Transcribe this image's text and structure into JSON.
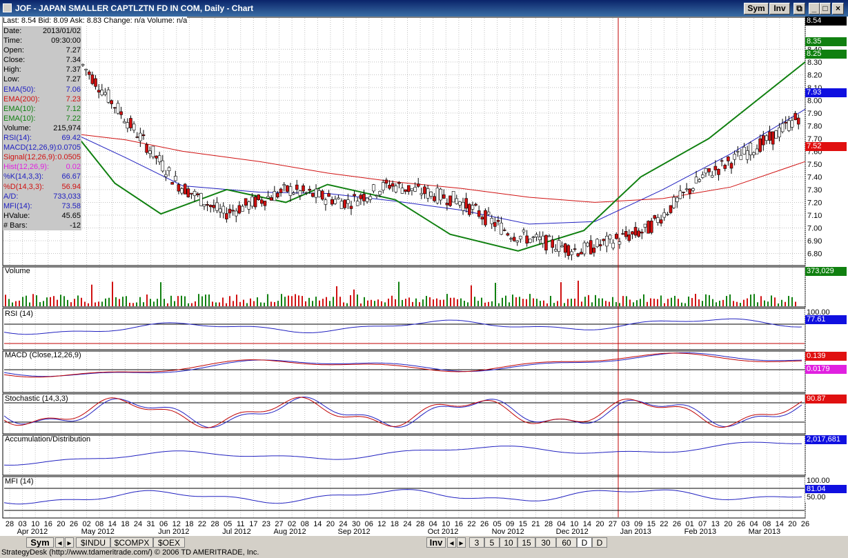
{
  "window": {
    "title": "JOF - JAPAN SMALLER CAPTLZTN FD IN COM, Daily - Chart",
    "buttons": [
      "Sym",
      "Inv"
    ]
  },
  "quote_line": "Last: 8.54  Bid: 8.09  Ask: 8.83  Change: n/a  Volume: n/a",
  "info_panel": [
    {
      "k": "Date:",
      "v": "2013/01/02",
      "color": "#000000"
    },
    {
      "k": "Time:",
      "v": "09:30:00",
      "color": "#000000"
    },
    {
      "k": "Open:",
      "v": "7.27",
      "color": "#000000"
    },
    {
      "k": "Close:",
      "v": "7.34",
      "color": "#000000"
    },
    {
      "k": "High:",
      "v": "7.37",
      "color": "#000000"
    },
    {
      "k": "Low:",
      "v": "7.27",
      "color": "#000000"
    },
    {
      "k": "EMA(50):",
      "v": "7.06",
      "color": "#2020c0"
    },
    {
      "k": "EMA(200):",
      "v": "7.23",
      "color": "#d01010"
    },
    {
      "k": "EMA(10):",
      "v": "7.12",
      "color": "#108010"
    },
    {
      "k": "EMA(10):",
      "v": "7.22",
      "color": "#108010"
    },
    {
      "k": "Volume:",
      "v": "215,974",
      "color": "#000000"
    },
    {
      "k": "RSI(14):",
      "v": "69.42",
      "color": "#2020c0"
    },
    {
      "k": "MACD(12,26,9):",
      "v": "0.0705",
      "color": "#2020c0"
    },
    {
      "k": "Signal(12,26,9):",
      "v": "0.0505",
      "color": "#d01010"
    },
    {
      "k": "Hist(12,26,9):",
      "v": "0.02",
      "color": "#e020e0"
    },
    {
      "k": "%K(14,3,3):",
      "v": "66.67",
      "color": "#2020c0"
    },
    {
      "k": "%D(14,3,3):",
      "v": "56.94",
      "color": "#d01010"
    },
    {
      "k": "A/D:",
      "v": "733,033",
      "color": "#2020c0"
    },
    {
      "k": "MFI(14):",
      "v": "73.58",
      "color": "#2020c0"
    },
    {
      "k": "HValue:",
      "v": "45.65",
      "color": "#000000"
    },
    {
      "k": "# Bars:",
      "v": "-12",
      "color": "#000000"
    }
  ],
  "price_axis": [
    "8.40",
    "8.30",
    "8.20",
    "8.10",
    "8.00",
    "7.90",
    "7.80",
    "7.70",
    "7.60",
    "7.50",
    "7.40",
    "7.30",
    "7.20",
    "7.10",
    "7.00",
    "6.90",
    "6.80"
  ],
  "price_tags": [
    {
      "label": "8.54",
      "bg": "#000000",
      "fg": "#ffffff",
      "value": 8.54
    },
    {
      "label": "8.35",
      "bg": "#108010",
      "fg": "#ffffff",
      "value": 8.35
    },
    {
      "label": "8.25",
      "bg": "#108010",
      "fg": "#ffffff",
      "value": 8.25
    },
    {
      "label": "7.93",
      "bg": "#1010e0",
      "fg": "#ffffff",
      "value": 7.93
    },
    {
      "label": "7.52",
      "bg": "#e01010",
      "fg": "#ffffff",
      "value": 7.52
    }
  ],
  "panels": {
    "volume": {
      "label": "Volume",
      "tag": "373,029",
      "tag_bg": "#108010"
    },
    "rsi": {
      "label": "RSI (14)",
      "tag": "77.61",
      "tag_bg": "#1010e0",
      "top": "100.00"
    },
    "macd": {
      "label": "MACD (Close,12,26,9)",
      "tag": "0.139",
      "tag_bg": "#e01010",
      "tag2": "0.0179",
      "tag2_bg": "#e020e0"
    },
    "stoch": {
      "label": "Stochastic (14,3,3)",
      "tag": "90.87",
      "tag_bg": "#e01010"
    },
    "ad": {
      "label": "Accumulation/Distribution",
      "tag": "2,017,681",
      "tag_bg": "#1010e0"
    },
    "mfi": {
      "label": "MFI (14)",
      "tag": "81.04",
      "tag_bg": "#1010e0",
      "top": "100.00",
      "mid": "50.00"
    }
  },
  "x_days": [
    "28",
    "03",
    "10",
    "16",
    "20",
    "26",
    "02",
    "08",
    "14",
    "18",
    "24",
    "31",
    "06",
    "12",
    "18",
    "22",
    "28",
    "05",
    "11",
    "17",
    "23",
    "27",
    "02",
    "08",
    "14",
    "20",
    "24",
    "30",
    "06",
    "12",
    "18",
    "24",
    "28",
    "04",
    "10",
    "16",
    "22",
    "26",
    "05",
    "09",
    "15",
    "21",
    "28",
    "04",
    "10",
    "14",
    "20",
    "27",
    "03",
    "09",
    "15",
    "22",
    "26",
    "01",
    "07",
    "13",
    "20",
    "26",
    "04",
    "08",
    "14",
    "20",
    "26"
  ],
  "x_months": [
    "Apr 2012",
    "May 2012",
    "Jun 2012",
    "Jul 2012",
    "Aug 2012",
    "Sep 2012",
    "Oct 2012",
    "Nov 2012",
    "Dec 2012",
    "Jan 2013",
    "Feb 2013",
    "Mar 2013"
  ],
  "bottom_tabs": {
    "sym": "Sym",
    "symbols": [
      "$INDU",
      "$COMPX",
      "$OEX"
    ],
    "inv": "Inv",
    "intervals": [
      "3",
      "5",
      "10",
      "15",
      "30",
      "60",
      "D",
      "D"
    ]
  },
  "status": "StrategyDesk (http://www.tdameritrade.com/) © 2006 TD AMERITRADE, Inc.",
  "chart_data": {
    "type": "line",
    "title": "JOF - JAPAN SMALLER CAPTLZTN FD IN COM, Daily",
    "ylim": [
      6.7,
      8.58
    ],
    "series": [
      {
        "name": "EMA(50)",
        "color": "#2020c0",
        "x": [
          "2012-04-25",
          "2012-05-20",
          "2012-06-15",
          "2012-07-20",
          "2012-08-20",
          "2012-09-20",
          "2012-10-20",
          "2012-11-20",
          "2012-12-20",
          "2013-01-20",
          "2013-02-20",
          "2013-03-26"
        ],
        "values": [
          7.75,
          7.55,
          7.33,
          7.28,
          7.27,
          7.21,
          7.14,
          7.03,
          7.05,
          7.3,
          7.58,
          7.93
        ]
      },
      {
        "name": "EMA(200)",
        "color": "#d01010",
        "x": [
          "2012-04-25",
          "2012-05-20",
          "2012-06-15",
          "2012-07-20",
          "2012-08-20",
          "2012-09-20",
          "2012-10-20",
          "2012-11-20",
          "2012-12-20",
          "2013-01-20",
          "2013-02-20",
          "2013-03-26"
        ],
        "values": [
          7.74,
          7.69,
          7.6,
          7.52,
          7.43,
          7.36,
          7.31,
          7.24,
          7.2,
          7.23,
          7.32,
          7.52
        ]
      },
      {
        "name": "EMA(10)",
        "color": "#108010",
        "x": [
          "2012-04-25",
          "2012-05-15",
          "2012-06-05",
          "2012-07-05",
          "2012-08-01",
          "2012-08-20",
          "2012-09-20",
          "2012-10-15",
          "2012-11-15",
          "2012-12-15",
          "2013-01-10",
          "2013-02-10",
          "2013-03-26"
        ],
        "values": [
          7.78,
          7.35,
          7.11,
          7.3,
          7.2,
          7.34,
          7.22,
          6.95,
          6.82,
          6.98,
          7.4,
          7.7,
          8.3
        ]
      }
    ]
  }
}
